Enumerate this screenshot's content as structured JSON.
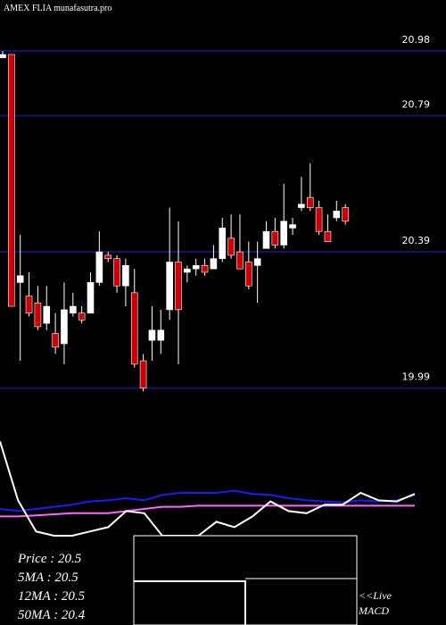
{
  "chart_data": [
    {
      "type": "candlestick",
      "title": "AMEX  FLIA munafasutra.pro",
      "ylim": [
        19.96,
        21.13
      ],
      "yticks": [
        20.98,
        20.79,
        20.39,
        19.99
      ],
      "grid": true,
      "grid_color": "#14146e",
      "up_color": "#ffffff",
      "down_color": "#cc0000",
      "wick_color": "#ffffff",
      "open": [
        20.96,
        20.97,
        20.3,
        20.26,
        20.24,
        20.18,
        20.15,
        20.12,
        20.21,
        20.21,
        20.21,
        20.3,
        20.38,
        20.37,
        20.29,
        20.27,
        20.07,
        20.13,
        20.13,
        20.22,
        20.36,
        20.33,
        20.34,
        20.35,
        20.34,
        20.37,
        20.43,
        20.39,
        20.36,
        20.35,
        20.4,
        20.45,
        20.41,
        20.46,
        20.52,
        20.55,
        20.52,
        20.45,
        20.49,
        20.52
      ],
      "high": [
        20.98,
        20.97,
        20.44,
        20.33,
        20.29,
        20.29,
        20.21,
        20.3,
        20.27,
        20.23,
        20.33,
        20.45,
        20.39,
        20.38,
        20.37,
        20.34,
        20.09,
        20.23,
        20.22,
        20.52,
        20.48,
        20.35,
        20.37,
        20.37,
        20.41,
        20.49,
        20.5,
        20.5,
        20.42,
        20.42,
        20.48,
        20.49,
        20.59,
        20.49,
        20.61,
        20.65,
        20.54,
        20.5,
        20.54,
        20.53
      ],
      "low": [
        20.96,
        20.23,
        20.07,
        20.2,
        20.16,
        20.16,
        20.09,
        20.06,
        20.2,
        20.18,
        20.21,
        20.29,
        20.36,
        20.27,
        20.23,
        20.05,
        19.98,
        20.07,
        20.09,
        20.19,
        20.06,
        20.3,
        20.32,
        20.32,
        20.34,
        20.36,
        20.37,
        20.34,
        20.28,
        20.24,
        20.4,
        20.4,
        20.4,
        20.44,
        20.51,
        20.51,
        20.44,
        20.42,
        20.48,
        20.47
      ],
      "close": [
        20.97,
        20.23,
        20.32,
        20.21,
        20.17,
        20.23,
        20.11,
        20.22,
        20.23,
        20.19,
        20.3,
        20.39,
        20.37,
        20.29,
        20.35,
        20.06,
        19.99,
        20.16,
        20.16,
        20.36,
        20.22,
        20.34,
        20.35,
        20.33,
        20.37,
        20.46,
        20.38,
        20.34,
        20.29,
        20.37,
        20.45,
        20.41,
        20.48,
        20.47,
        20.53,
        20.52,
        20.45,
        20.42,
        20.51,
        20.48
      ]
    },
    {
      "type": "line",
      "xlim": [
        0,
        23
      ],
      "ylim": [
        0,
        100
      ],
      "x": [
        0,
        1,
        2,
        3,
        4,
        5,
        6,
        7,
        8,
        9,
        10,
        11,
        12,
        13,
        14,
        15,
        16,
        17,
        18,
        19,
        20,
        21,
        22,
        23
      ],
      "series": [
        {
          "color": "#ff66ff",
          "values": [
            18,
            18,
            19,
            20,
            21,
            21,
            21,
            23,
            25,
            27,
            27,
            28,
            28,
            28,
            28,
            28,
            28,
            28,
            28,
            28,
            28,
            28,
            28,
            28
          ]
        },
        {
          "color": "#1a1aff",
          "values": [
            25,
            23,
            25,
            27,
            29,
            32,
            33,
            35,
            33,
            38,
            40,
            40,
            40,
            42,
            39,
            38,
            35,
            33,
            32,
            31,
            33,
            32,
            33,
            38
          ]
        },
        {
          "color": "#ffffff",
          "values": [
            88,
            33,
            4,
            0,
            0,
            4,
            8,
            23,
            21,
            0,
            0,
            0,
            13,
            8,
            18,
            32,
            23,
            21,
            29,
            29,
            40,
            33,
            32,
            39
          ]
        }
      ],
      "legend_lines": [
        "Price  : 20.5",
        "5MA : 20.5",
        "12MA : 20.5",
        "50MA : 20.4"
      ],
      "macd_label": [
        "<<Live",
        "MACD"
      ]
    }
  ]
}
